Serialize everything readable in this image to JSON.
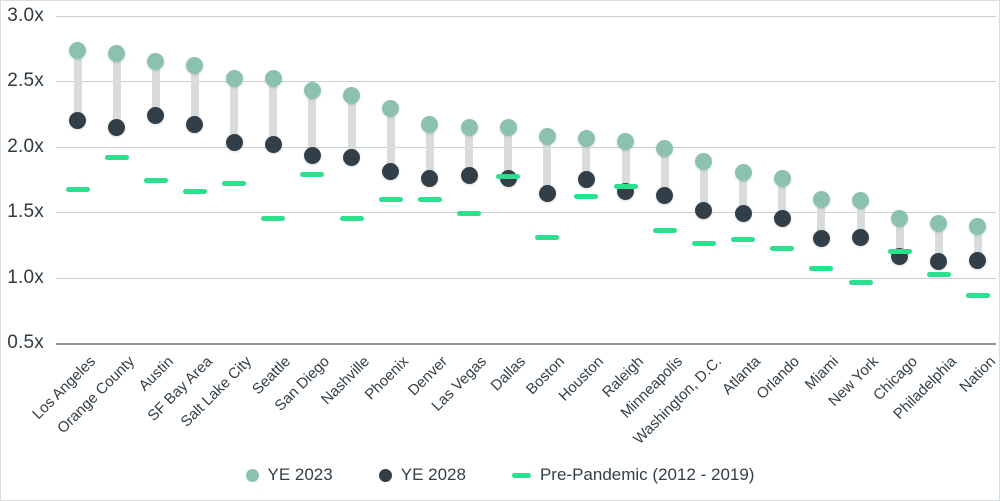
{
  "chart_data": {
    "type": "scatter",
    "variant": "dumbbell",
    "title": "",
    "categories": [
      "Los Angeles",
      "Orange County",
      "Austin",
      "SF Bay Area",
      "Salt Lake City",
      "Seattle",
      "San Diego",
      "Nashville",
      "Phoenix",
      "Denver",
      "Las Vegas",
      "Dallas",
      "Boston",
      "Houston",
      "Raleigh",
      "Minneapolis",
      "Washington, D.C.",
      "Atlanta",
      "Orlando",
      "Miami",
      "New York",
      "Chicago",
      "Philadelphia",
      "Nation"
    ],
    "series": [
      {
        "name": "YE 2023",
        "marker": "circle",
        "color": "#8ac2ae",
        "values": [
          2.74,
          2.71,
          2.65,
          2.62,
          2.52,
          2.52,
          2.43,
          2.39,
          2.29,
          2.17,
          2.15,
          2.15,
          2.08,
          2.06,
          2.04,
          1.99,
          1.89,
          1.8,
          1.76,
          1.6,
          1.59,
          1.45,
          1.41,
          1.39
        ]
      },
      {
        "name": "YE 2028",
        "marker": "circle",
        "color": "#333f48",
        "values": [
          2.2,
          2.15,
          2.24,
          2.17,
          2.03,
          2.02,
          1.93,
          1.92,
          1.81,
          1.76,
          1.78,
          1.76,
          1.64,
          1.75,
          1.66,
          1.63,
          1.51,
          1.49,
          1.45,
          1.3,
          1.31,
          1.16,
          1.12,
          1.13
        ]
      },
      {
        "name": "Pre-Pandemic (2012 - 2019)",
        "marker": "dash",
        "color": "#2bdf8c",
        "values": [
          1.67,
          1.92,
          1.74,
          1.66,
          1.72,
          1.45,
          1.79,
          1.45,
          1.6,
          1.6,
          1.49,
          1.77,
          1.31,
          1.62,
          1.7,
          1.36,
          1.26,
          1.29,
          1.22,
          1.07,
          0.96,
          1.2,
          1.02,
          0.86
        ]
      }
    ],
    "y_ticks": [
      "3.0x",
      "2.5x",
      "2.0x",
      "1.5x",
      "1.0x",
      "0.5x"
    ],
    "y_tick_values": [
      3.0,
      2.5,
      2.0,
      1.5,
      1.0,
      0.5
    ],
    "ylim": [
      0.5,
      3.0
    ],
    "grid": true,
    "legend_position": "bottom",
    "colors": {
      "gridline": "#cacfd2",
      "baseline": "#8b9499",
      "connector": "#d9dcdd",
      "text": "#333f48"
    }
  }
}
